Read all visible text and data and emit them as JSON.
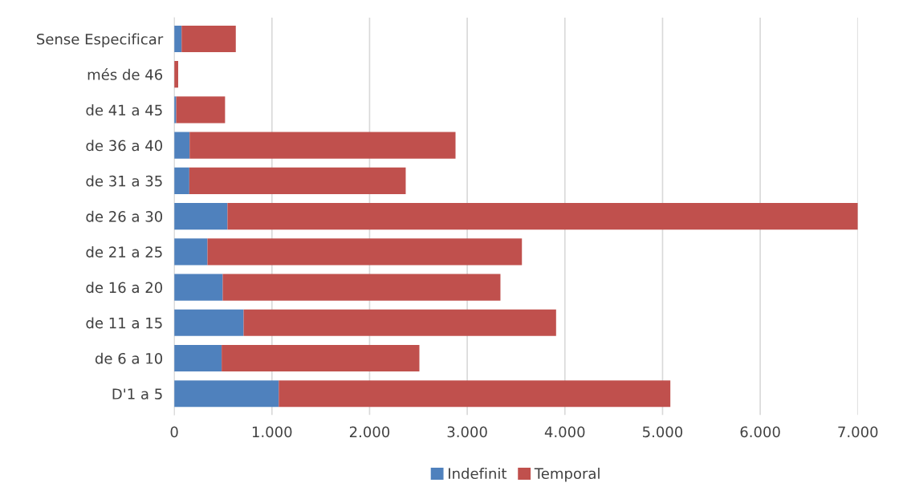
{
  "chart_data": {
    "type": "bar",
    "orientation": "horizontal",
    "stacked": true,
    "categories": [
      "Sense Especificar",
      "més de 46",
      "de 41 a 45",
      "de 36 a 40",
      "de 31 a 35",
      "de 26 a 30",
      "de 21 a 25",
      "de 16 a 20",
      "de 11 a 15",
      "de 6 a 10",
      "D'1 a 5"
    ],
    "series": [
      {
        "name": "Indefinit",
        "color": "#4f81bd",
        "values": [
          75,
          0,
          20,
          157,
          154,
          545,
          340,
          496,
          710,
          485,
          1070
        ]
      },
      {
        "name": "Temporal",
        "color": "#c0504d",
        "values": [
          555,
          40,
          500,
          2723,
          2216,
          6455,
          3220,
          2844,
          3200,
          2025,
          4010
        ]
      }
    ],
    "xlim": [
      0,
      7000
    ],
    "xticks": [
      0,
      {
        "value": 1000,
        "label": "1.000"
      },
      {
        "value": 2000,
        "label": "2.000"
      },
      {
        "value": 3000,
        "label": "3.000"
      },
      {
        "value": 4000,
        "label": "4.000"
      },
      {
        "value": 5000,
        "label": "5.000"
      },
      {
        "value": 6000,
        "label": "6.000"
      },
      {
        "value": 7000,
        "label": "7.000"
      }
    ],
    "grid": "x",
    "legend": "bottom"
  }
}
